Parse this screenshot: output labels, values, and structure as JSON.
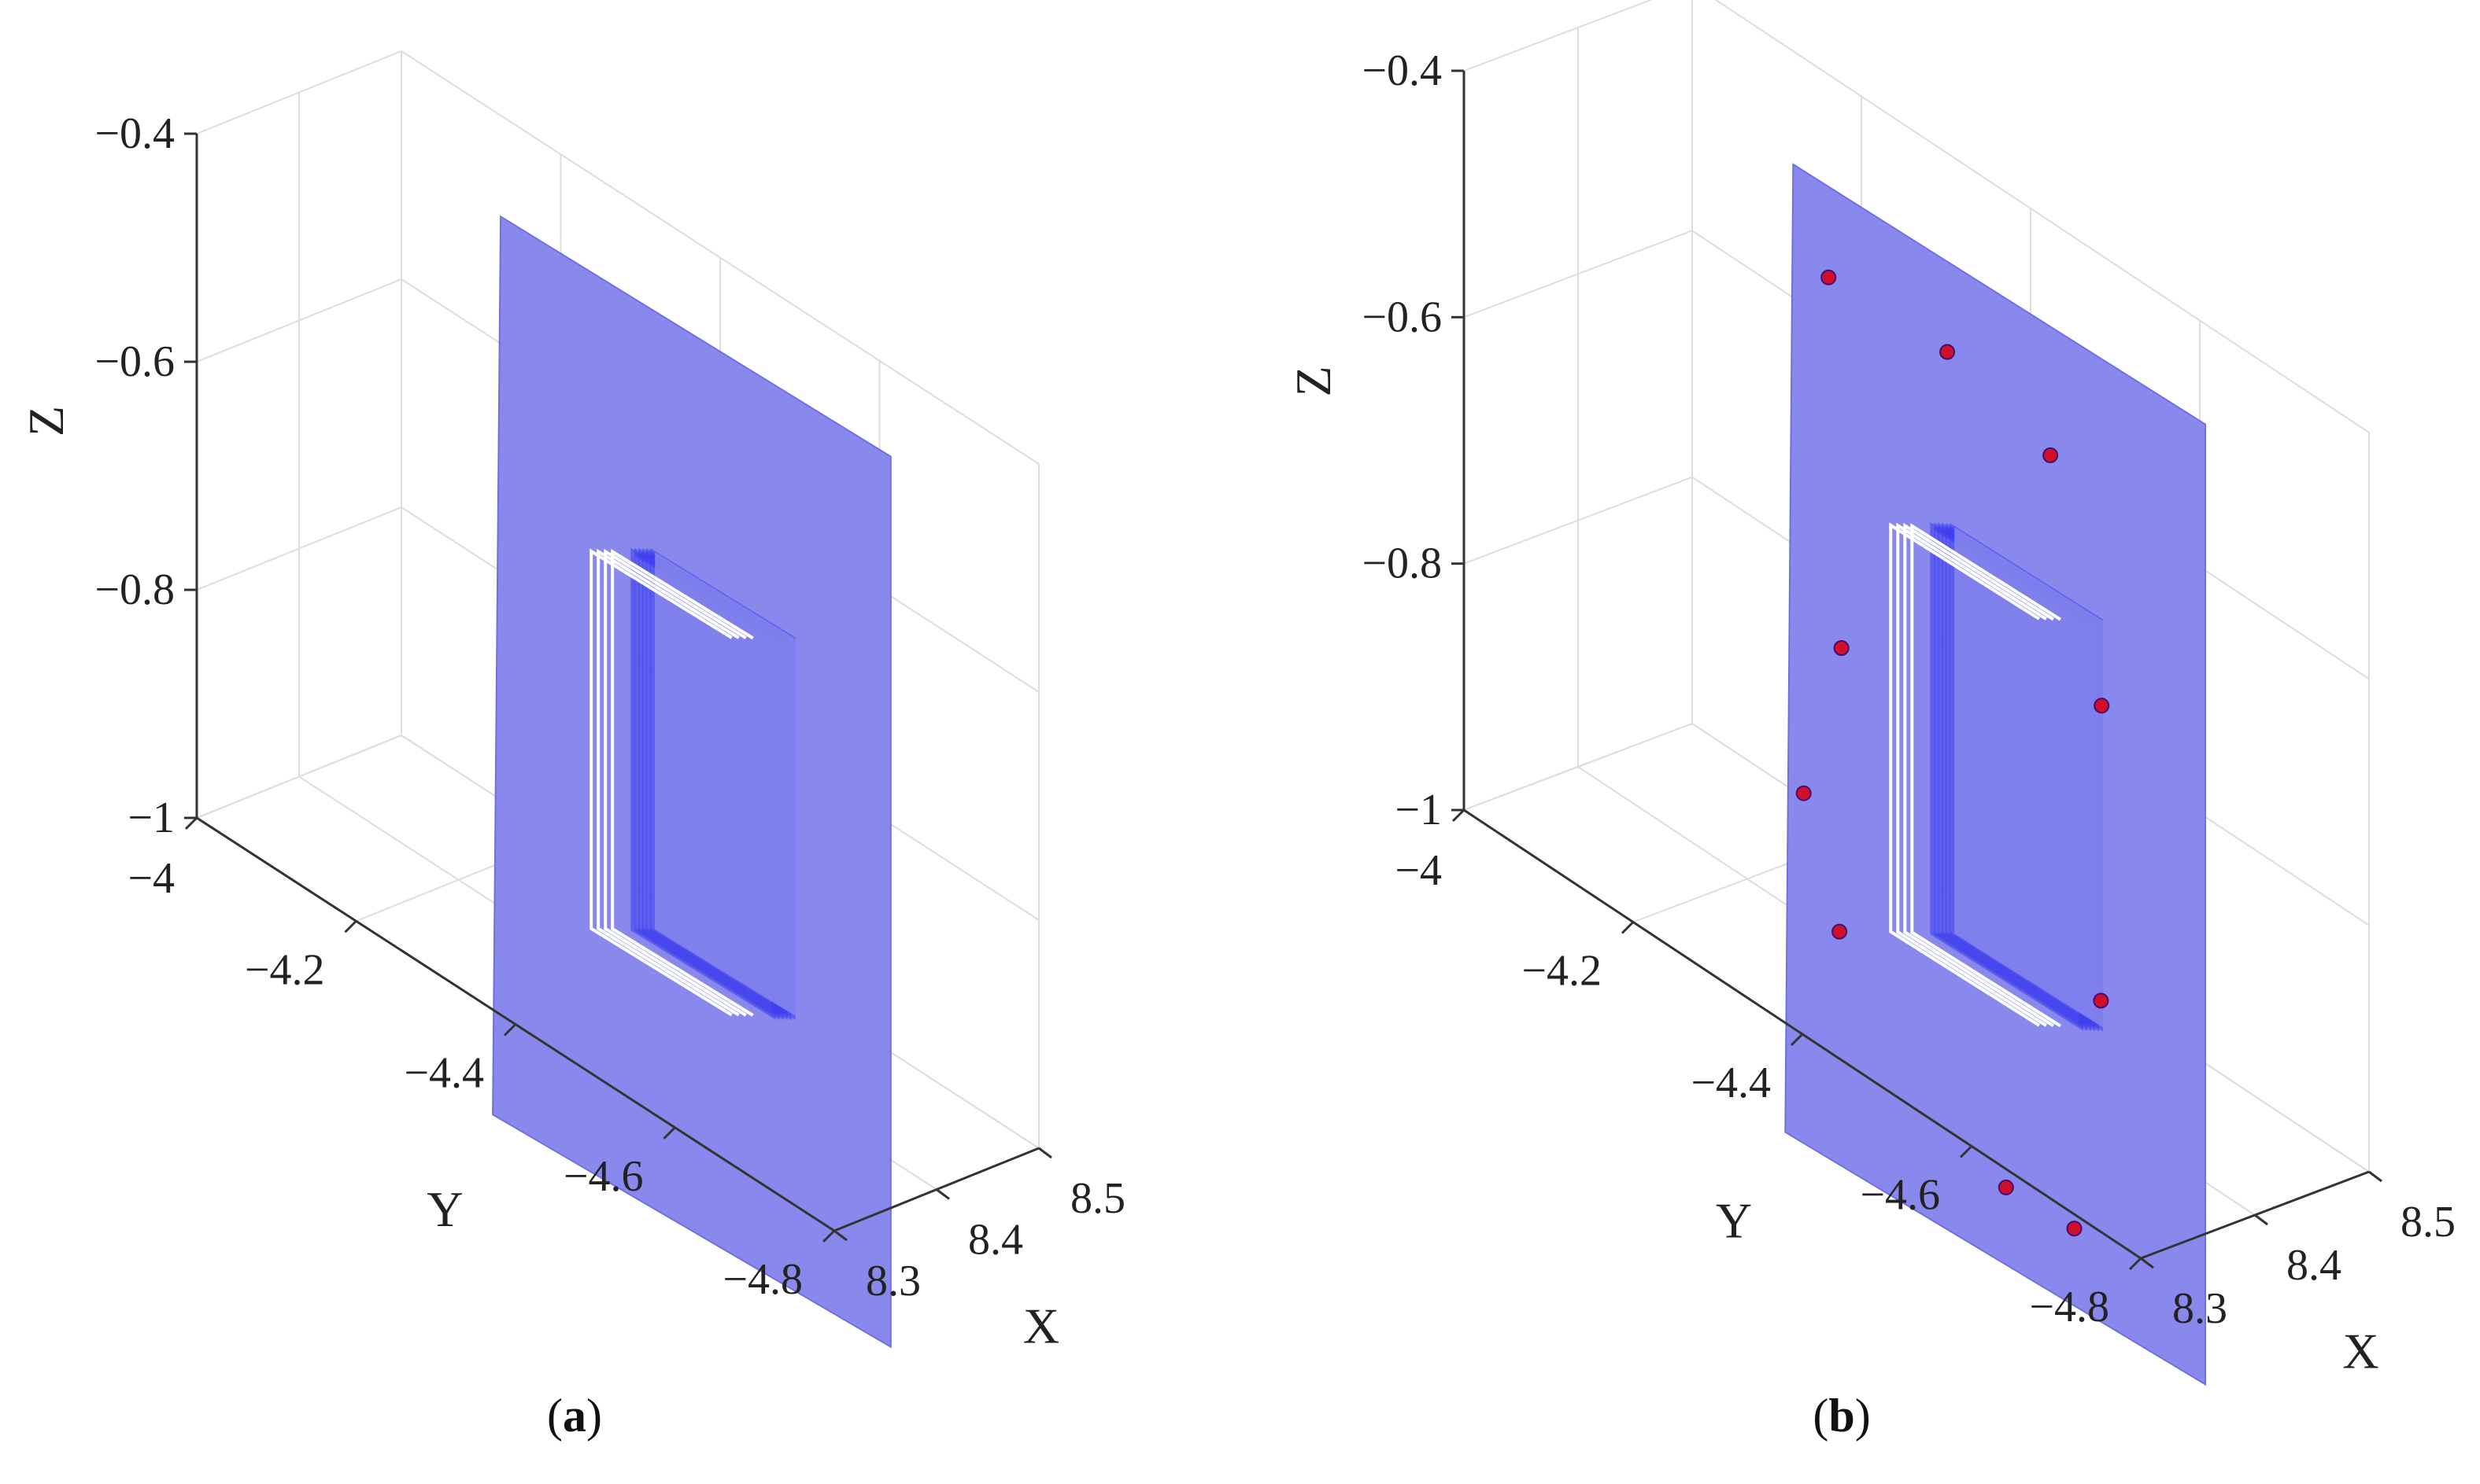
{
  "chart_data": [
    {
      "type": "surface3d",
      "panel": "a",
      "caption": "(a)",
      "xlabel": "X",
      "ylabel": "Y",
      "zlabel": "Z",
      "x_ticks": [
        "8.3",
        "8.4",
        "8.5"
      ],
      "y_ticks": [
        "-4",
        "-4.2",
        "-4.4",
        "-4.6",
        "-4.8"
      ],
      "z_ticks": [
        "-0.4",
        "-0.6",
        "-0.8",
        "-1"
      ],
      "xlim": [
        8.3,
        8.5
      ],
      "ylim": [
        -4.8,
        -4.0
      ],
      "zlim": [
        -1.0,
        -0.4
      ],
      "surface_color": "#7f7fec",
      "inner_frame_color": "#3a3aee",
      "markers": []
    },
    {
      "type": "surface3d",
      "panel": "b",
      "caption": "(b)",
      "xlabel": "X",
      "ylabel": "Y",
      "zlabel": "Z",
      "x_ticks": [
        "8.3",
        "8.4",
        "8.5"
      ],
      "y_ticks": [
        "-4",
        "-4.2",
        "-4.4",
        "-4.6",
        "-4.8"
      ],
      "z_ticks": [
        "-0.4",
        "-0.6",
        "-0.8",
        "-1"
      ],
      "xlim": [
        8.3,
        8.5
      ],
      "ylim": [
        -4.8,
        -4.0
      ],
      "zlim": [
        -1.0,
        -0.4
      ],
      "surface_color": "#7f7fec",
      "inner_frame_color": "#3a3aee",
      "marker_color": "#d0102a",
      "markers": [
        {
          "y": -4.07,
          "z": -0.52
        },
        {
          "y": -4.3,
          "z": -0.52
        },
        {
          "y": -4.5,
          "z": -0.55
        },
        {
          "y": -4.1,
          "z": -0.8
        },
        {
          "y": -4.6,
          "z": -0.72
        },
        {
          "y": -4.03,
          "z": -0.93
        },
        {
          "y": -4.1,
          "z": -1.02
        },
        {
          "y": -4.6,
          "z": -0.95
        },
        {
          "y": -4.42,
          "z": -1.14
        },
        {
          "y": -4.55,
          "z": -1.14
        }
      ]
    }
  ]
}
